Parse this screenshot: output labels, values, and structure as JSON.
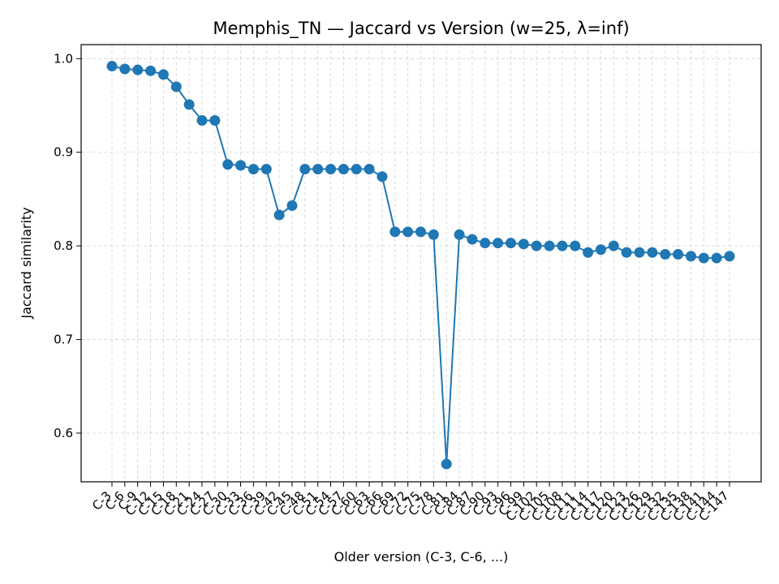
{
  "chart_data": {
    "type": "line",
    "title": "Memphis_TN — Jaccard vs Version (w=25, λ=inf)",
    "xlabel": "Older version (C-3, C-6, ...)",
    "ylabel": "Jaccard similarity",
    "ylim": [
      0.548,
      1.015
    ],
    "yticks": [
      0.6,
      0.7,
      0.8,
      0.9,
      1.0
    ],
    "ytick_labels": [
      "0.6",
      "0.7",
      "0.8",
      "0.9",
      "1.0"
    ],
    "grid": true,
    "line_color": "#1f77b4",
    "marker": "circle",
    "categories": [
      "C-3",
      "C-6",
      "C-9",
      "C-12",
      "C-15",
      "C-18",
      "C-21",
      "C-24",
      "C-27",
      "C-30",
      "C-33",
      "C-36",
      "C-39",
      "C-42",
      "C-45",
      "C-48",
      "C-51",
      "C-54",
      "C-57",
      "C-60",
      "C-63",
      "C-66",
      "C-69",
      "C-72",
      "C-75",
      "C-78",
      "C-81",
      "C-84",
      "C-87",
      "C-90",
      "C-93",
      "C-96",
      "C-99",
      "C-102",
      "C-105",
      "C-108",
      "C-111",
      "C-114",
      "C-117",
      "C-120",
      "C-123",
      "C-126",
      "C-129",
      "C-132",
      "C-135",
      "C-138",
      "C-141",
      "C-144",
      "C-147"
    ],
    "series": [
      {
        "values": [
          0.992,
          0.989,
          0.988,
          0.987,
          0.983,
          0.97,
          0.951,
          0.934,
          0.934,
          0.887,
          0.886,
          0.882,
          0.882,
          0.833,
          0.843,
          0.882,
          0.882,
          0.882,
          0.882,
          0.882,
          0.882,
          0.874,
          0.815,
          0.815,
          0.815,
          0.812,
          0.567,
          0.812,
          0.807,
          0.803,
          0.803,
          0.803,
          0.802,
          0.8,
          0.8,
          0.8,
          0.8,
          0.793,
          0.796,
          0.8,
          0.793,
          0.793,
          0.793,
          0.791,
          0.791,
          0.789,
          0.787,
          0.787,
          0.789
        ]
      }
    ]
  }
}
